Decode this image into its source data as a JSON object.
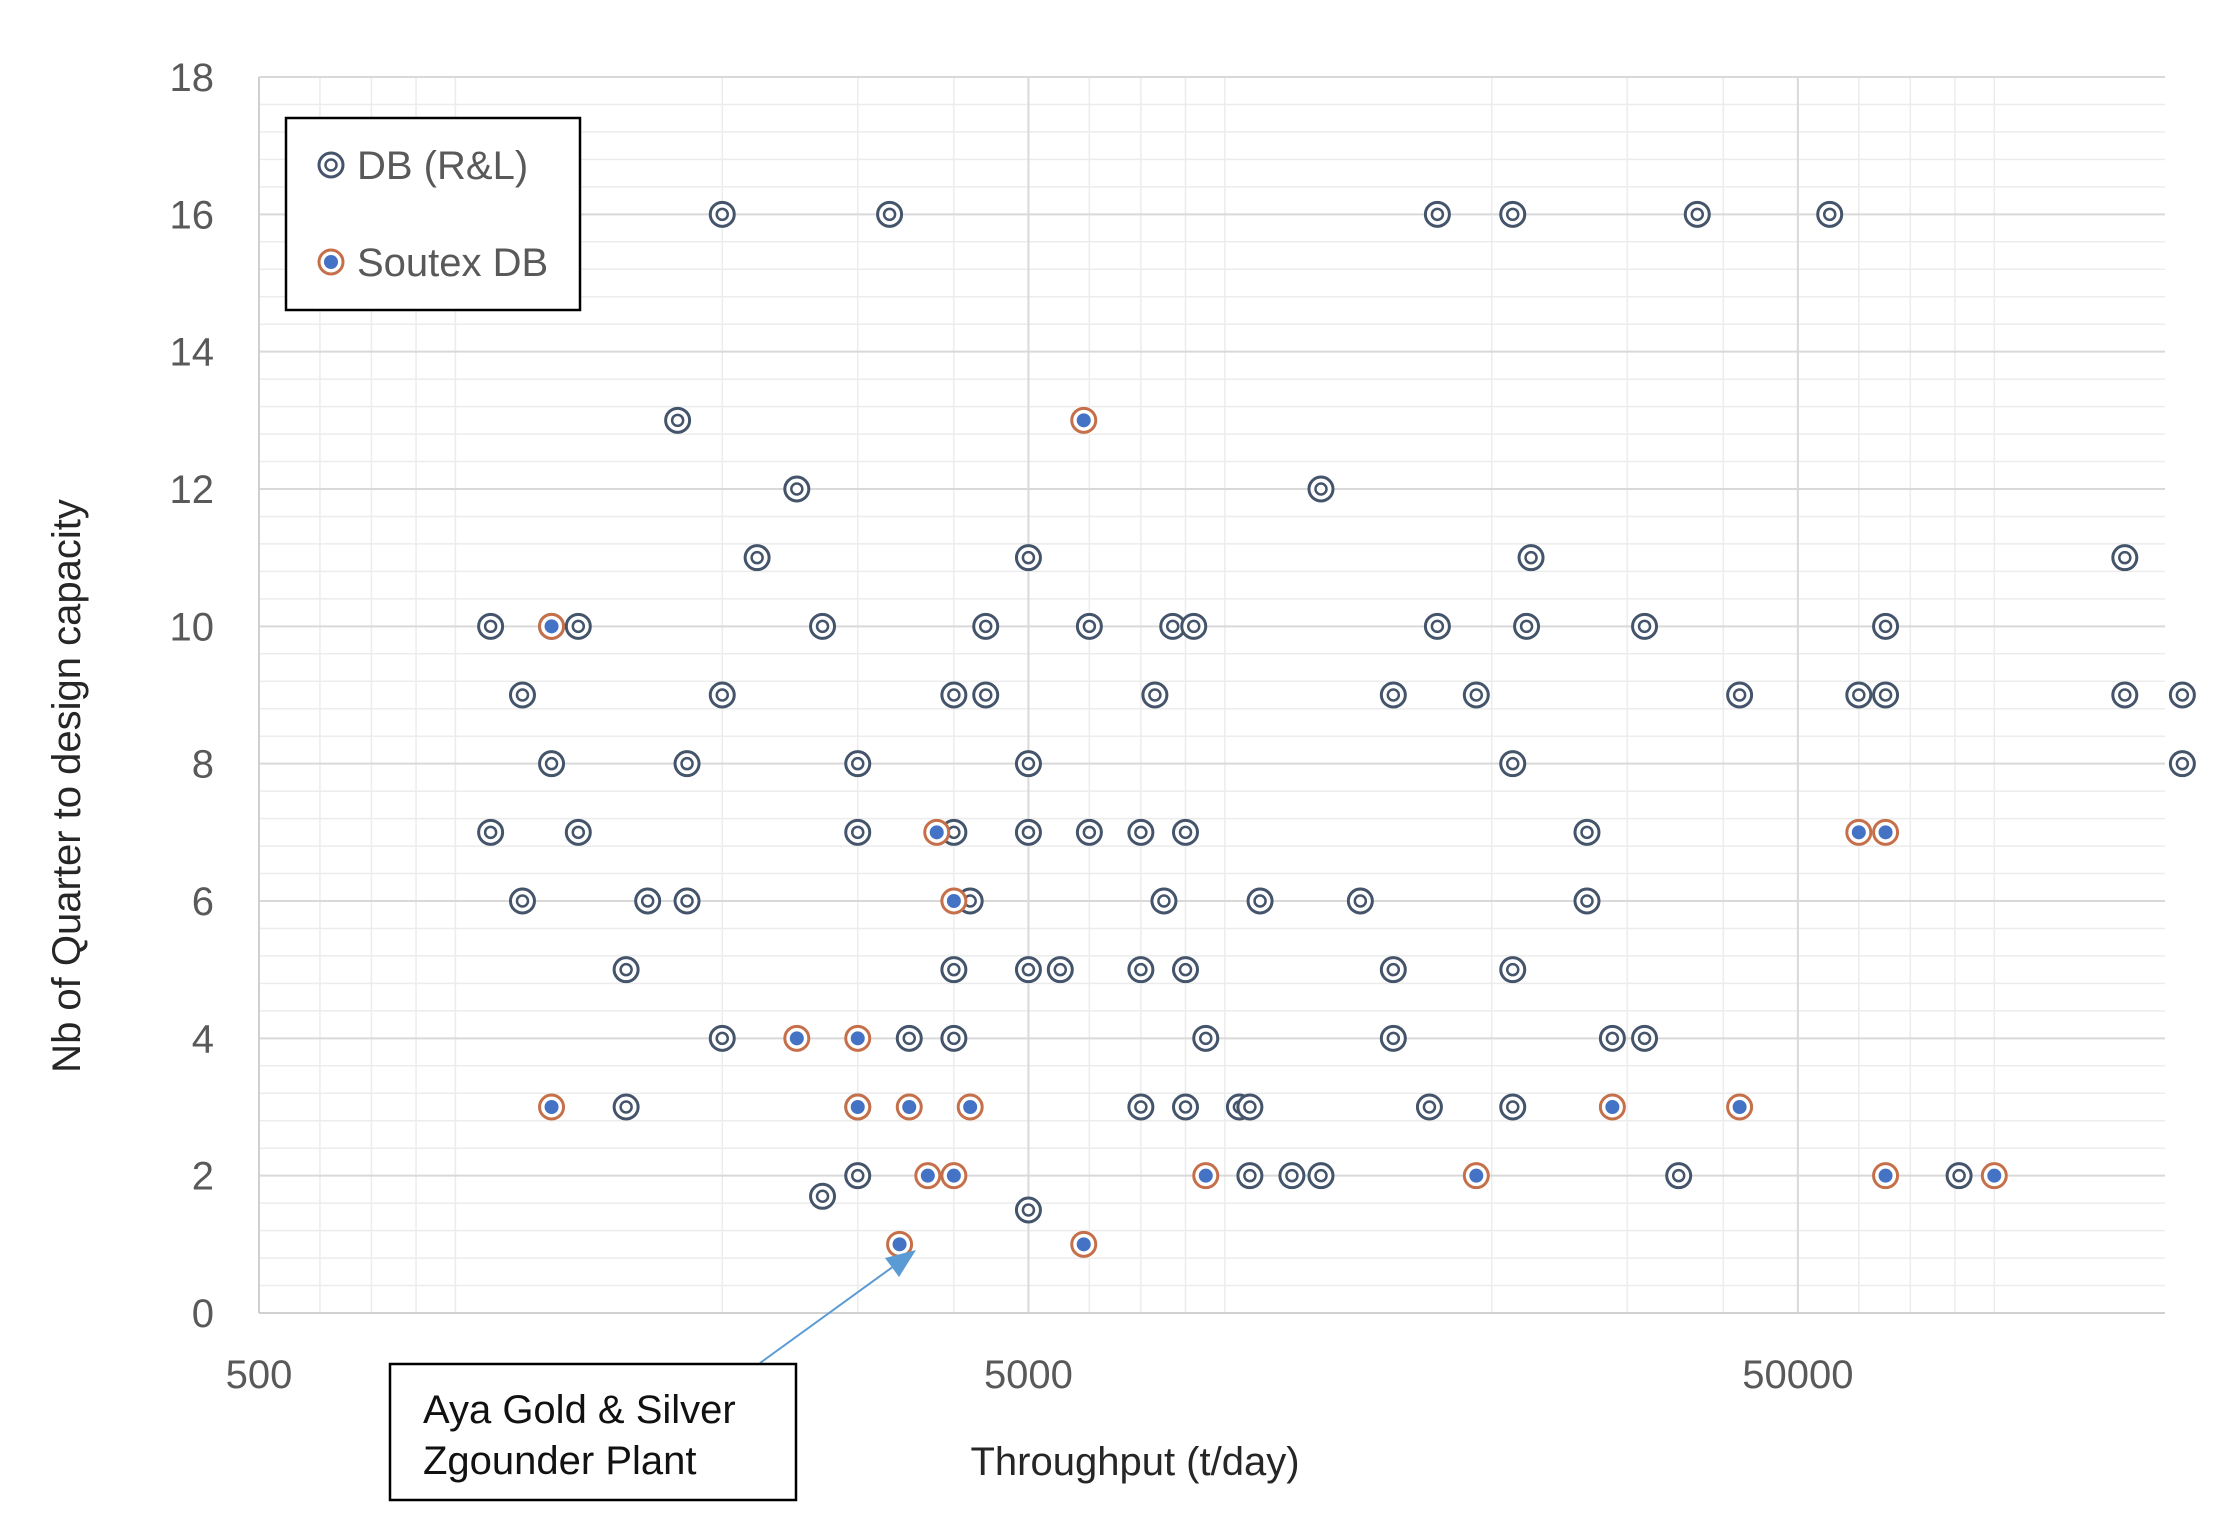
{
  "chart_data": {
    "type": "scatter",
    "xlabel": "Throughput (t/day)",
    "ylabel": "Nb of Quarter to design capacity",
    "x_scale": "log",
    "xlim": [
      500,
      150000
    ],
    "ylim": [
      0,
      18
    ],
    "x_ticks": [
      500,
      5000,
      50000
    ],
    "x_tick_labels": [
      "500",
      "5000",
      "50000"
    ],
    "y_ticks": [
      0,
      2,
      4,
      6,
      8,
      10,
      12,
      14,
      16,
      18
    ],
    "y_tick_labels": [
      "0",
      "2",
      "4",
      "6",
      "8",
      "10",
      "12",
      "14",
      "16",
      "18"
    ],
    "grid": true,
    "legend": {
      "placement": "top-left",
      "entries": [
        "DB (R&L)",
        "Soutex DB"
      ]
    },
    "colors": {
      "db_rl_ring": "#44546A",
      "soutex_ring": "#C5704A",
      "soutex_fill": "#4472C4",
      "grid_major": "#d9d9d9",
      "grid_minor": "#ececec",
      "annotation_arrow": "#5B9BD5"
    },
    "series": [
      {
        "name": "DB (R&L)",
        "points": [
          [
            2000,
            16
          ],
          [
            3300,
            16
          ],
          [
            17000,
            16
          ],
          [
            21300,
            16
          ],
          [
            37000,
            16
          ],
          [
            55000,
            16
          ],
          [
            1750,
            13
          ],
          [
            2500,
            12
          ],
          [
            12000,
            12
          ],
          [
            2220,
            11
          ],
          [
            5000,
            11
          ],
          [
            22500,
            11
          ],
          [
            133000,
            11
          ],
          [
            1000,
            10
          ],
          [
            1200,
            10
          ],
          [
            1300,
            10
          ],
          [
            2700,
            10
          ],
          [
            4400,
            10
          ],
          [
            6000,
            10
          ],
          [
            7700,
            10
          ],
          [
            8200,
            10
          ],
          [
            17000,
            10
          ],
          [
            22200,
            10
          ],
          [
            31600,
            10
          ],
          [
            65000,
            10
          ],
          [
            1100,
            9
          ],
          [
            2000,
            9
          ],
          [
            4000,
            9
          ],
          [
            4400,
            9
          ],
          [
            7300,
            9
          ],
          [
            14900,
            9
          ],
          [
            19100,
            9
          ],
          [
            42000,
            9
          ],
          [
            60000,
            9
          ],
          [
            65000,
            9
          ],
          [
            133000,
            9
          ],
          [
            158000,
            9
          ],
          [
            1200,
            8
          ],
          [
            1800,
            8
          ],
          [
            3000,
            8
          ],
          [
            5000,
            8
          ],
          [
            21300,
            8
          ],
          [
            158000,
            8
          ],
          [
            1000,
            7
          ],
          [
            1300,
            7
          ],
          [
            3000,
            7
          ],
          [
            4000,
            7
          ],
          [
            5000,
            7
          ],
          [
            6000,
            7
          ],
          [
            7000,
            7
          ],
          [
            8000,
            7
          ],
          [
            26600,
            7
          ],
          [
            1100,
            6
          ],
          [
            1600,
            6
          ],
          [
            1800,
            6
          ],
          [
            4200,
            6
          ],
          [
            7500,
            6
          ],
          [
            10000,
            6
          ],
          [
            13500,
            6
          ],
          [
            26600,
            6
          ],
          [
            1500,
            5
          ],
          [
            4000,
            5
          ],
          [
            5000,
            5
          ],
          [
            5500,
            5
          ],
          [
            7000,
            5
          ],
          [
            8000,
            5
          ],
          [
            14900,
            5
          ],
          [
            21300,
            5
          ],
          [
            2000,
            4
          ],
          [
            3500,
            4
          ],
          [
            4000,
            4
          ],
          [
            8500,
            4
          ],
          [
            14900,
            4
          ],
          [
            28700,
            4
          ],
          [
            31600,
            4
          ],
          [
            1500,
            3
          ],
          [
            3000,
            3
          ],
          [
            7000,
            3
          ],
          [
            8000,
            3
          ],
          [
            9400,
            3
          ],
          [
            9700,
            3
          ],
          [
            16600,
            3
          ],
          [
            21300,
            3
          ],
          [
            3000,
            2
          ],
          [
            9700,
            2
          ],
          [
            11000,
            2
          ],
          [
            12000,
            2
          ],
          [
            35000,
            2
          ],
          [
            81000,
            2
          ],
          [
            2700,
            1.7
          ],
          [
            5000,
            1.5
          ]
        ]
      },
      {
        "name": "Soutex DB",
        "points": [
          [
            5900,
            13
          ],
          [
            1200,
            10
          ],
          [
            3800,
            7
          ],
          [
            60000,
            7
          ],
          [
            65000,
            7
          ],
          [
            4000,
            6
          ],
          [
            2500,
            4
          ],
          [
            3000,
            4
          ],
          [
            1200,
            3
          ],
          [
            3000,
            3
          ],
          [
            3500,
            3
          ],
          [
            4200,
            3
          ],
          [
            28700,
            3
          ],
          [
            42000,
            3
          ],
          [
            3700,
            2
          ],
          [
            4000,
            2
          ],
          [
            8500,
            2
          ],
          [
            19100,
            2
          ],
          [
            65000,
            2
          ],
          [
            90000,
            2
          ],
          [
            5900,
            1
          ],
          [
            3400,
            1
          ]
        ]
      }
    ],
    "annotations": [
      {
        "text_lines": [
          "Aya Gold & Silver",
          "Zgounder Plant"
        ],
        "points_to": [
          3400,
          1
        ]
      }
    ]
  }
}
